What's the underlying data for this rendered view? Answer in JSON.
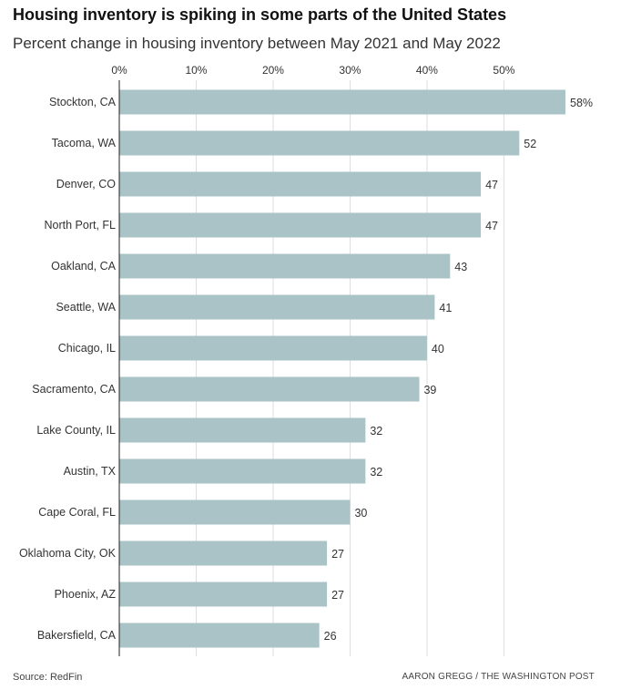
{
  "title": "Housing inventory is spiking in some parts of the United States",
  "subtitle": "Percent change in housing inventory between May 2021 and May 2022",
  "source": "Source: RedFin",
  "credit": "AARON GREGG / THE WASHINGTON POST",
  "colors": {
    "bar": "#a9c3c7",
    "grid": "#dddddd",
    "axis": "#222222",
    "text": "#333333"
  },
  "chart_data": {
    "type": "bar",
    "orientation": "horizontal",
    "categories": [
      "Stockton, CA",
      "Tacoma, WA",
      "Denver, CO",
      "North Port, FL",
      "Oakland, CA",
      "Seattle, WA",
      "Chicago, IL",
      "Sacramento, CA",
      "Lake County, IL",
      "Austin, TX",
      "Cape Coral, FL",
      "Oklahoma City, OK",
      "Phoenix, AZ",
      "Bakersfield, CA"
    ],
    "values": [
      58,
      52,
      47,
      47,
      43,
      41,
      40,
      39,
      32,
      32,
      30,
      27,
      27,
      26
    ],
    "value_labels": [
      "58%",
      "52",
      "47",
      "47",
      "43",
      "41",
      "40",
      "39",
      "32",
      "32",
      "30",
      "27",
      "27",
      "26"
    ],
    "xticks": [
      0,
      10,
      20,
      30,
      40,
      50
    ],
    "xtick_labels": [
      "0%",
      "10%",
      "20%",
      "30%",
      "40%",
      "50%"
    ],
    "xlim": [
      0,
      58
    ],
    "grid": true,
    "axis_position": "top"
  }
}
